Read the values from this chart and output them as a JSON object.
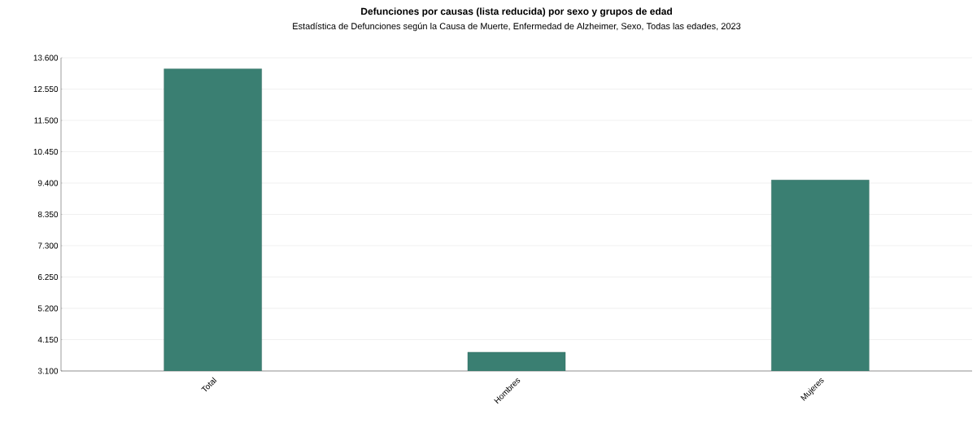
{
  "chart_data": {
    "type": "bar",
    "title": "Defunciones por causas (lista reducida) por sexo y grupos de edad",
    "subtitle": "Estadística de Defunciones según la Causa de Muerte, Enfermedad de Alzheimer, Sexo, Todas las edades, 2023",
    "categories": [
      "Total",
      "Hombres",
      "Mujeres"
    ],
    "values": [
      13230,
      3730,
      9500
    ],
    "color": "#3a7f72",
    "ylim": [
      3100,
      13600
    ],
    "yticks": [
      {
        "value": 3100,
        "label": "3.100"
      },
      {
        "value": 4150,
        "label": "4.150"
      },
      {
        "value": 5200,
        "label": "5.200"
      },
      {
        "value": 6250,
        "label": "6.250"
      },
      {
        "value": 7300,
        "label": "7.300"
      },
      {
        "value": 8350,
        "label": "8.350"
      },
      {
        "value": 9400,
        "label": "9.400"
      },
      {
        "value": 10450,
        "label": "10.450"
      },
      {
        "value": 11500,
        "label": "11.500"
      },
      {
        "value": 12550,
        "label": "12.550"
      },
      {
        "value": 13600,
        "label": "13.600"
      }
    ],
    "grid": "y"
  }
}
